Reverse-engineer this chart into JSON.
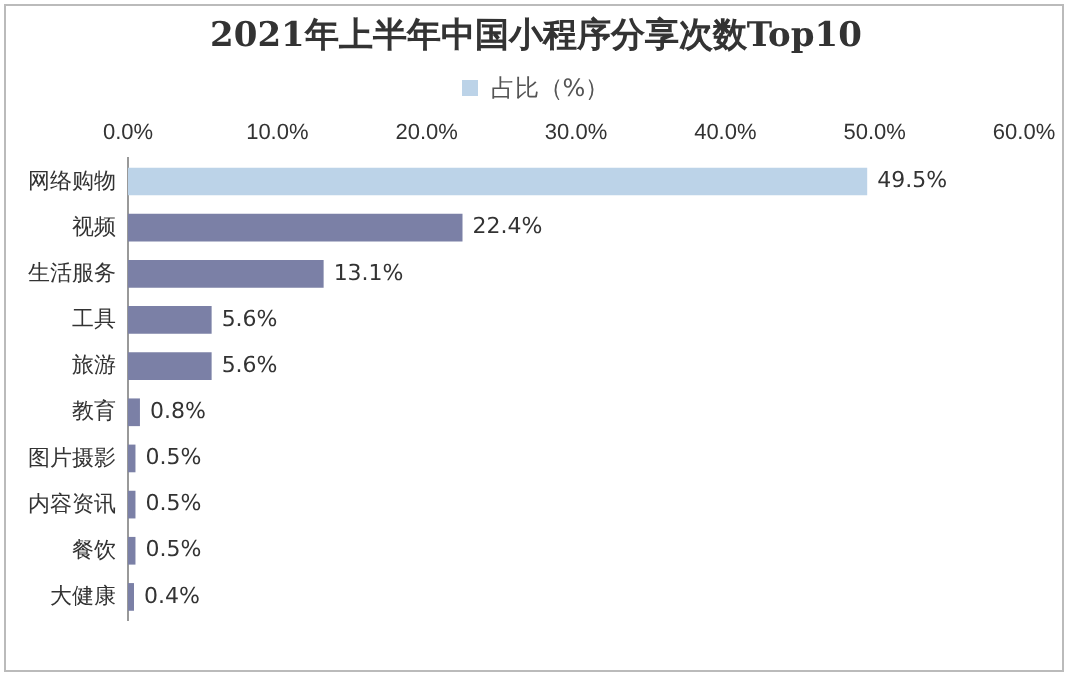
{
  "chart_data": {
    "type": "bar",
    "orientation": "horizontal",
    "title": "2021年上半年中国小程序分享次数Top10",
    "categories": [
      "网络购物",
      "视频",
      "生活服务",
      "工具",
      "旅游",
      "教育",
      "图片摄影",
      "内容资讯",
      "餐饮",
      "大健康"
    ],
    "series": [
      {
        "name": "占比（%）",
        "colors": [
          "#bcd3e8",
          "#7b80a6",
          "#7b80a6",
          "#7b80a6",
          "#7b80a6",
          "#7b80a6",
          "#7b80a6",
          "#7b80a6",
          "#7b80a6",
          "#7b80a6"
        ],
        "values": [
          49.5,
          22.4,
          13.1,
          5.6,
          5.6,
          0.8,
          0.5,
          0.5,
          0.5,
          0.4
        ],
        "value_labels": [
          "49.5%",
          "22.4%",
          "13.1%",
          "5.6%",
          "5.6%",
          "0.8%",
          "0.5%",
          "0.5%",
          "0.5%",
          "0.4%"
        ]
      }
    ],
    "xlim": [
      0,
      60
    ],
    "xticks": [
      {
        "value": 0,
        "label": "0.0%"
      },
      {
        "value": 10,
        "label": "10.0%"
      },
      {
        "value": 20,
        "label": "20.0%"
      },
      {
        "value": 30,
        "label": "30.0%"
      },
      {
        "value": 40,
        "label": "40.0%"
      },
      {
        "value": 50,
        "label": "50.0%"
      },
      {
        "value": 60,
        "label": "60.0%"
      }
    ],
    "grid": false,
    "legend": "top"
  }
}
